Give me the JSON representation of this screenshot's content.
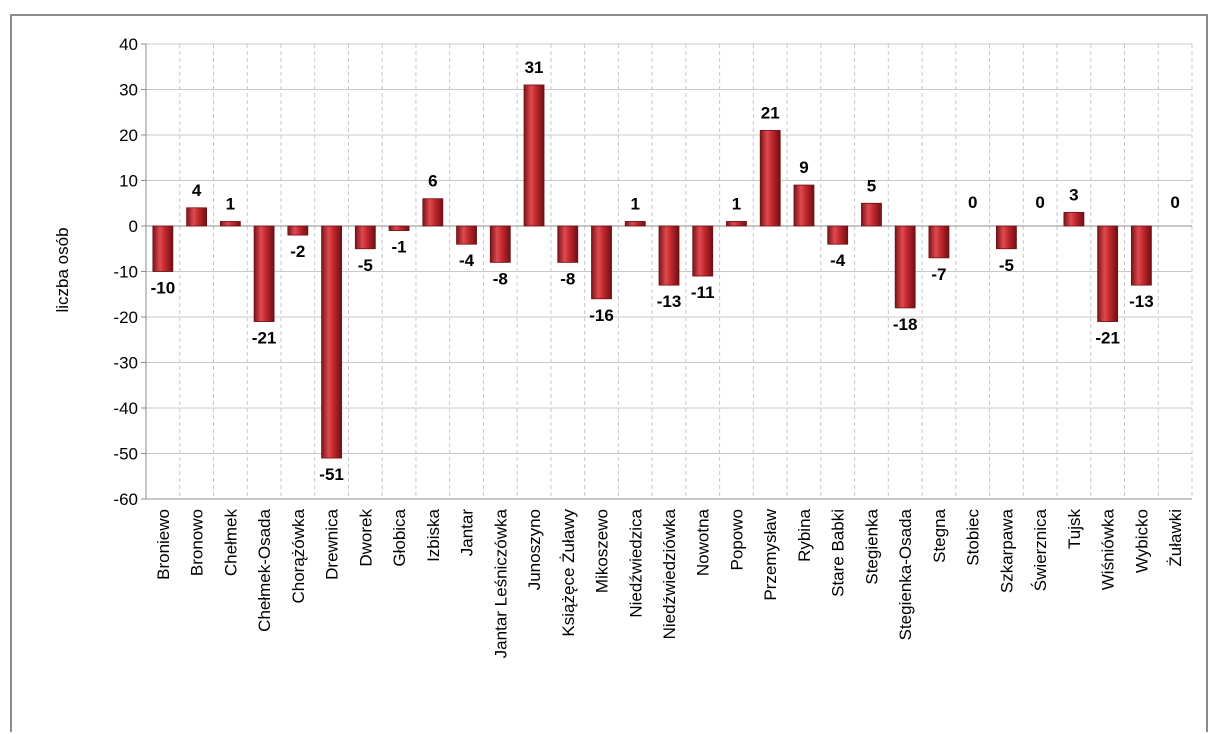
{
  "chart_data": {
    "type": "bar",
    "ylabel": "liczba osób",
    "xlabel": "",
    "ylim": [
      -60,
      40
    ],
    "yticks": [
      40,
      30,
      20,
      10,
      0,
      -10,
      -20,
      -30,
      -40,
      -50,
      -60
    ],
    "grid": true,
    "legend": "none",
    "bar_color": "#c0272d",
    "categories": [
      "Broniewo",
      "Bronowo",
      "Chełmek",
      "Chełmek-Osada",
      "Chorążówka",
      "Drewnica",
      "Dworek",
      "Głobica",
      "Izbiska",
      "Jantar",
      "Jantar Leśniczówka",
      "Junoszyno",
      "Książęce Żuławy",
      "Mikoszewo",
      "Niedźwiedzica",
      "Niedźwiedziówka",
      "Nowotna",
      "Popowo",
      "Przemysław",
      "Rybina",
      "Stare Babki",
      "Stegienka",
      "Stegienka-Osada",
      "Stegna",
      "Stobiec",
      "Szkarpawa",
      "Świerznica",
      "Tujsk",
      "Wiśniówka",
      "Wybicko",
      "Żuławki"
    ],
    "values": [
      -10,
      4,
      1,
      -21,
      -2,
      -51,
      -5,
      -1,
      6,
      -4,
      -8,
      31,
      -8,
      -16,
      1,
      -13,
      -11,
      1,
      21,
      9,
      -4,
      5,
      -18,
      -7,
      0,
      -5,
      0,
      3,
      -21,
      -13,
      0
    ]
  }
}
